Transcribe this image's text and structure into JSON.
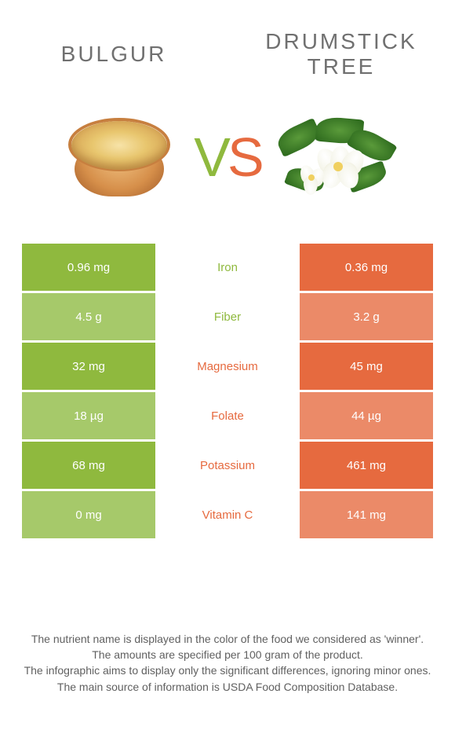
{
  "titles": {
    "left": "BULGUR",
    "right_line1": "DRUMSTICK",
    "right_line2": "TREE"
  },
  "vs": {
    "v": "V",
    "s": "S"
  },
  "colors": {
    "left": "#8fb93e",
    "right": "#e66a3f",
    "left_alt": "#a6c96a",
    "right_alt": "#eb8a68",
    "mid_text_left": "#8fb93e",
    "mid_text_right": "#e66a3f"
  },
  "rows": [
    {
      "left": "0.96 mg",
      "mid": "Iron",
      "right": "0.36 mg",
      "winner": "left"
    },
    {
      "left": "4.5 g",
      "mid": "Fiber",
      "right": "3.2 g",
      "winner": "left"
    },
    {
      "left": "32 mg",
      "mid": "Magnesium",
      "right": "45 mg",
      "winner": "right"
    },
    {
      "left": "18 µg",
      "mid": "Folate",
      "right": "44 µg",
      "winner": "right"
    },
    {
      "left": "68 mg",
      "mid": "Potassium",
      "right": "461 mg",
      "winner": "right"
    },
    {
      "left": "0 mg",
      "mid": "Vitamin C",
      "right": "141 mg",
      "winner": "right"
    }
  ],
  "footer": {
    "l1": "The nutrient name is displayed in the color of the food we considered as 'winner'.",
    "l2": "The amounts are specified per 100 gram of the product.",
    "l3": "The infographic aims to display only the significant differences, ignoring minor ones.",
    "l4": "The main source of information is USDA Food Composition Database."
  }
}
